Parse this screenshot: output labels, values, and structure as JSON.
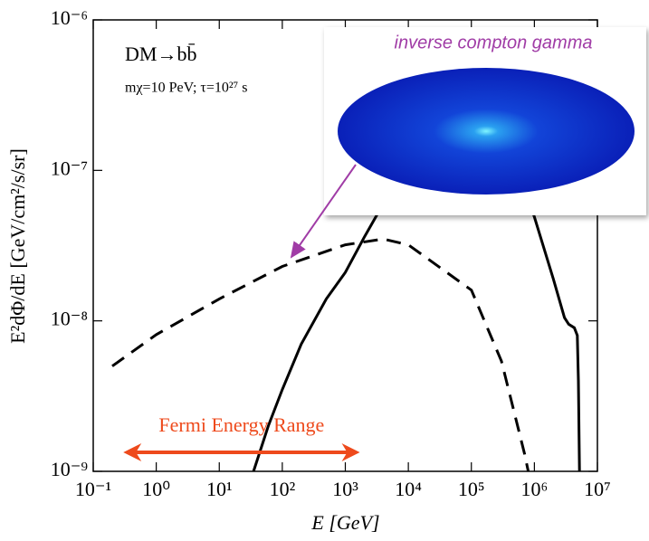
{
  "chart_data": {
    "type": "line",
    "xscale": "log",
    "yscale": "log",
    "xlabel": "E [GeV]",
    "ylabel": "E²dΦ/dE [GeV/cm²/s/sr]",
    "xlim": [
      0.1,
      10000000
    ],
    "ylim": [
      1e-09,
      1e-06
    ],
    "xticks": [
      {
        "value": 0.1,
        "label": "10⁻¹"
      },
      {
        "value": 1,
        "label": "10⁰"
      },
      {
        "value": 10,
        "label": "10¹"
      },
      {
        "value": 100,
        "label": "10²"
      },
      {
        "value": 1000,
        "label": "10³"
      },
      {
        "value": 10000,
        "label": "10⁴"
      },
      {
        "value": 100000,
        "label": "10⁵"
      },
      {
        "value": 1000000,
        "label": "10⁶"
      },
      {
        "value": 10000000,
        "label": "10⁷"
      }
    ],
    "yticks": [
      {
        "value": 1e-09,
        "label": "10⁻⁹"
      },
      {
        "value": 1e-08,
        "label": "10⁻⁸"
      },
      {
        "value": 1e-07,
        "label": "10⁻⁷"
      },
      {
        "value": 1e-06,
        "label": "10⁻⁶"
      }
    ],
    "annotations": [
      "DM→bb̄",
      "mχ=10 PeV; τ=10²⁷ s"
    ],
    "range_arrow": {
      "label": "Fermi Energy Range",
      "x": [
        0.3,
        1700
      ],
      "color": "#ee4a1c"
    },
    "series": [
      {
        "color": "#000000",
        "style": "solid",
        "x": [
          35,
          60,
          100,
          200,
          500,
          1000,
          2000,
          4000,
          10000,
          30000,
          100000,
          300000,
          1000000,
          2000000,
          3000000,
          3500000,
          4300000,
          4800000,
          5000000,
          5200000
        ],
        "values": [
          1e-09,
          2e-09,
          3.5e-09,
          7e-09,
          1.4e-08,
          2.1e-08,
          3.6e-08,
          6e-08,
          1.2e-07,
          2e-07,
          2.5e-07,
          2e-07,
          4.9e-08,
          1.9e-08,
          1.05e-08,
          9.5e-09,
          9e-09,
          8e-09,
          4e-09,
          1e-09
        ]
      },
      {
        "name": "inverse compton gamma",
        "color": "#000000",
        "style": "dashed",
        "x": [
          0.2,
          1,
          10,
          100,
          1000,
          4000,
          10000,
          100000,
          300000,
          700000,
          800000
        ],
        "values": [
          5e-09,
          8.1e-09,
          1.4e-08,
          2.3e-08,
          3.2e-08,
          3.5e-08,
          3.2e-08,
          1.6e-08,
          5.4e-09,
          1.3e-09,
          1e-09
        ]
      }
    ]
  }
}
